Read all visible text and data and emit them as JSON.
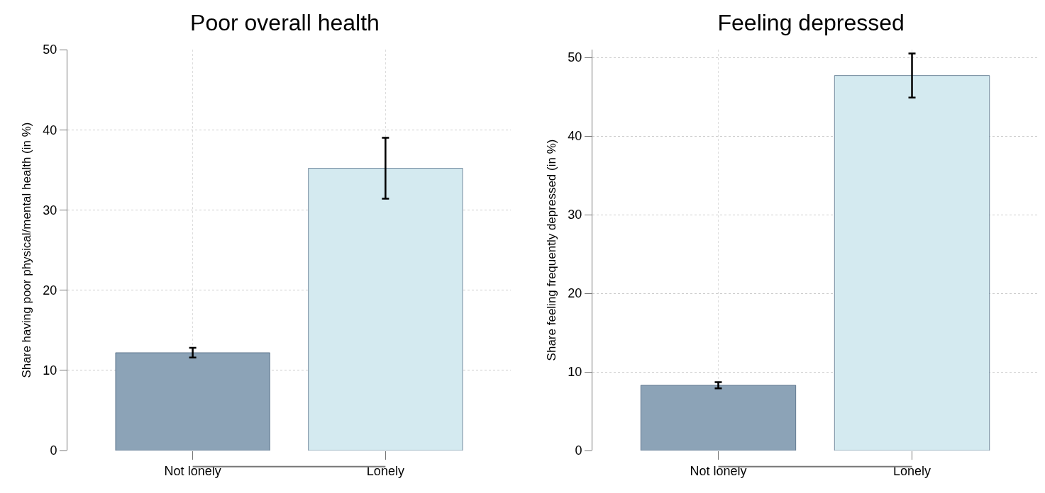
{
  "chart_data": [
    {
      "type": "bar",
      "title": "Poor overall health",
      "ylabel": "Share having poor physical/mental health (in %)",
      "categories": [
        "Not lonely",
        "Lonely"
      ],
      "values": [
        12.2,
        35.2
      ],
      "colors": [
        "#8ca3b7",
        "#d4eaf0"
      ],
      "errors": [
        [
          11.6,
          12.8
        ],
        [
          31.4,
          39.0
        ]
      ],
      "ylim": [
        0,
        50
      ],
      "yticks": [
        0,
        10,
        20,
        30,
        40,
        50
      ],
      "grid": true
    },
    {
      "type": "bar",
      "title": "Feeling depressed",
      "ylabel": "Share feeling frequently depressed (in %)",
      "categories": [
        "Not lonely",
        "Lonely"
      ],
      "values": [
        8.3,
        47.7
      ],
      "colors": [
        "#8ca3b7",
        "#d4eaf0"
      ],
      "errors": [
        [
          7.9,
          8.7
        ],
        [
          44.9,
          50.5
        ]
      ],
      "ylim": [
        0,
        51
      ],
      "yticks": [
        0,
        10,
        20,
        30,
        40,
        50
      ],
      "grid": true
    }
  ]
}
